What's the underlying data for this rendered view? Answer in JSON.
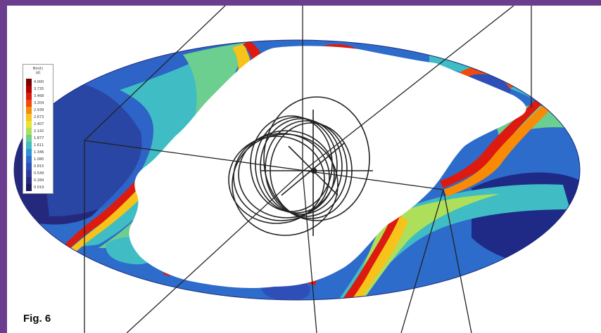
{
  "figure": {
    "label": "Fig. 6",
    "colors": {
      "frame": "#6a3d8f",
      "background": "#ffffff",
      "wireframe": "#222222"
    }
  },
  "legend": {
    "title_line1": "Bm(t)",
    "title_line2": "(d)",
    "entries": [
      {
        "value": "4.000",
        "color": "#7a0000"
      },
      {
        "value": "3.735",
        "color": "#b00000"
      },
      {
        "value": "3.468",
        "color": "#dd1a10"
      },
      {
        "value": "3.204",
        "color": "#f24a0c"
      },
      {
        "value": "2.939",
        "color": "#f88a06"
      },
      {
        "value": "2.673",
        "color": "#f7c21a"
      },
      {
        "value": "2.407",
        "color": "#e6e435"
      },
      {
        "value": "2.142",
        "color": "#aedf5a"
      },
      {
        "value": "1.877",
        "color": "#6cce8f"
      },
      {
        "value": "1.611",
        "color": "#3fbcc4"
      },
      {
        "value": "1.346",
        "color": "#2f92d6"
      },
      {
        "value": "1.080",
        "color": "#2d6ccb"
      },
      {
        "value": "0.815",
        "color": "#2e4fb8"
      },
      {
        "value": "0.549",
        "color": "#2b3aa0"
      },
      {
        "value": "0.284",
        "color": "#25297e"
      },
      {
        "value": "0.019",
        "color": "#1a1a5c"
      }
    ]
  }
}
